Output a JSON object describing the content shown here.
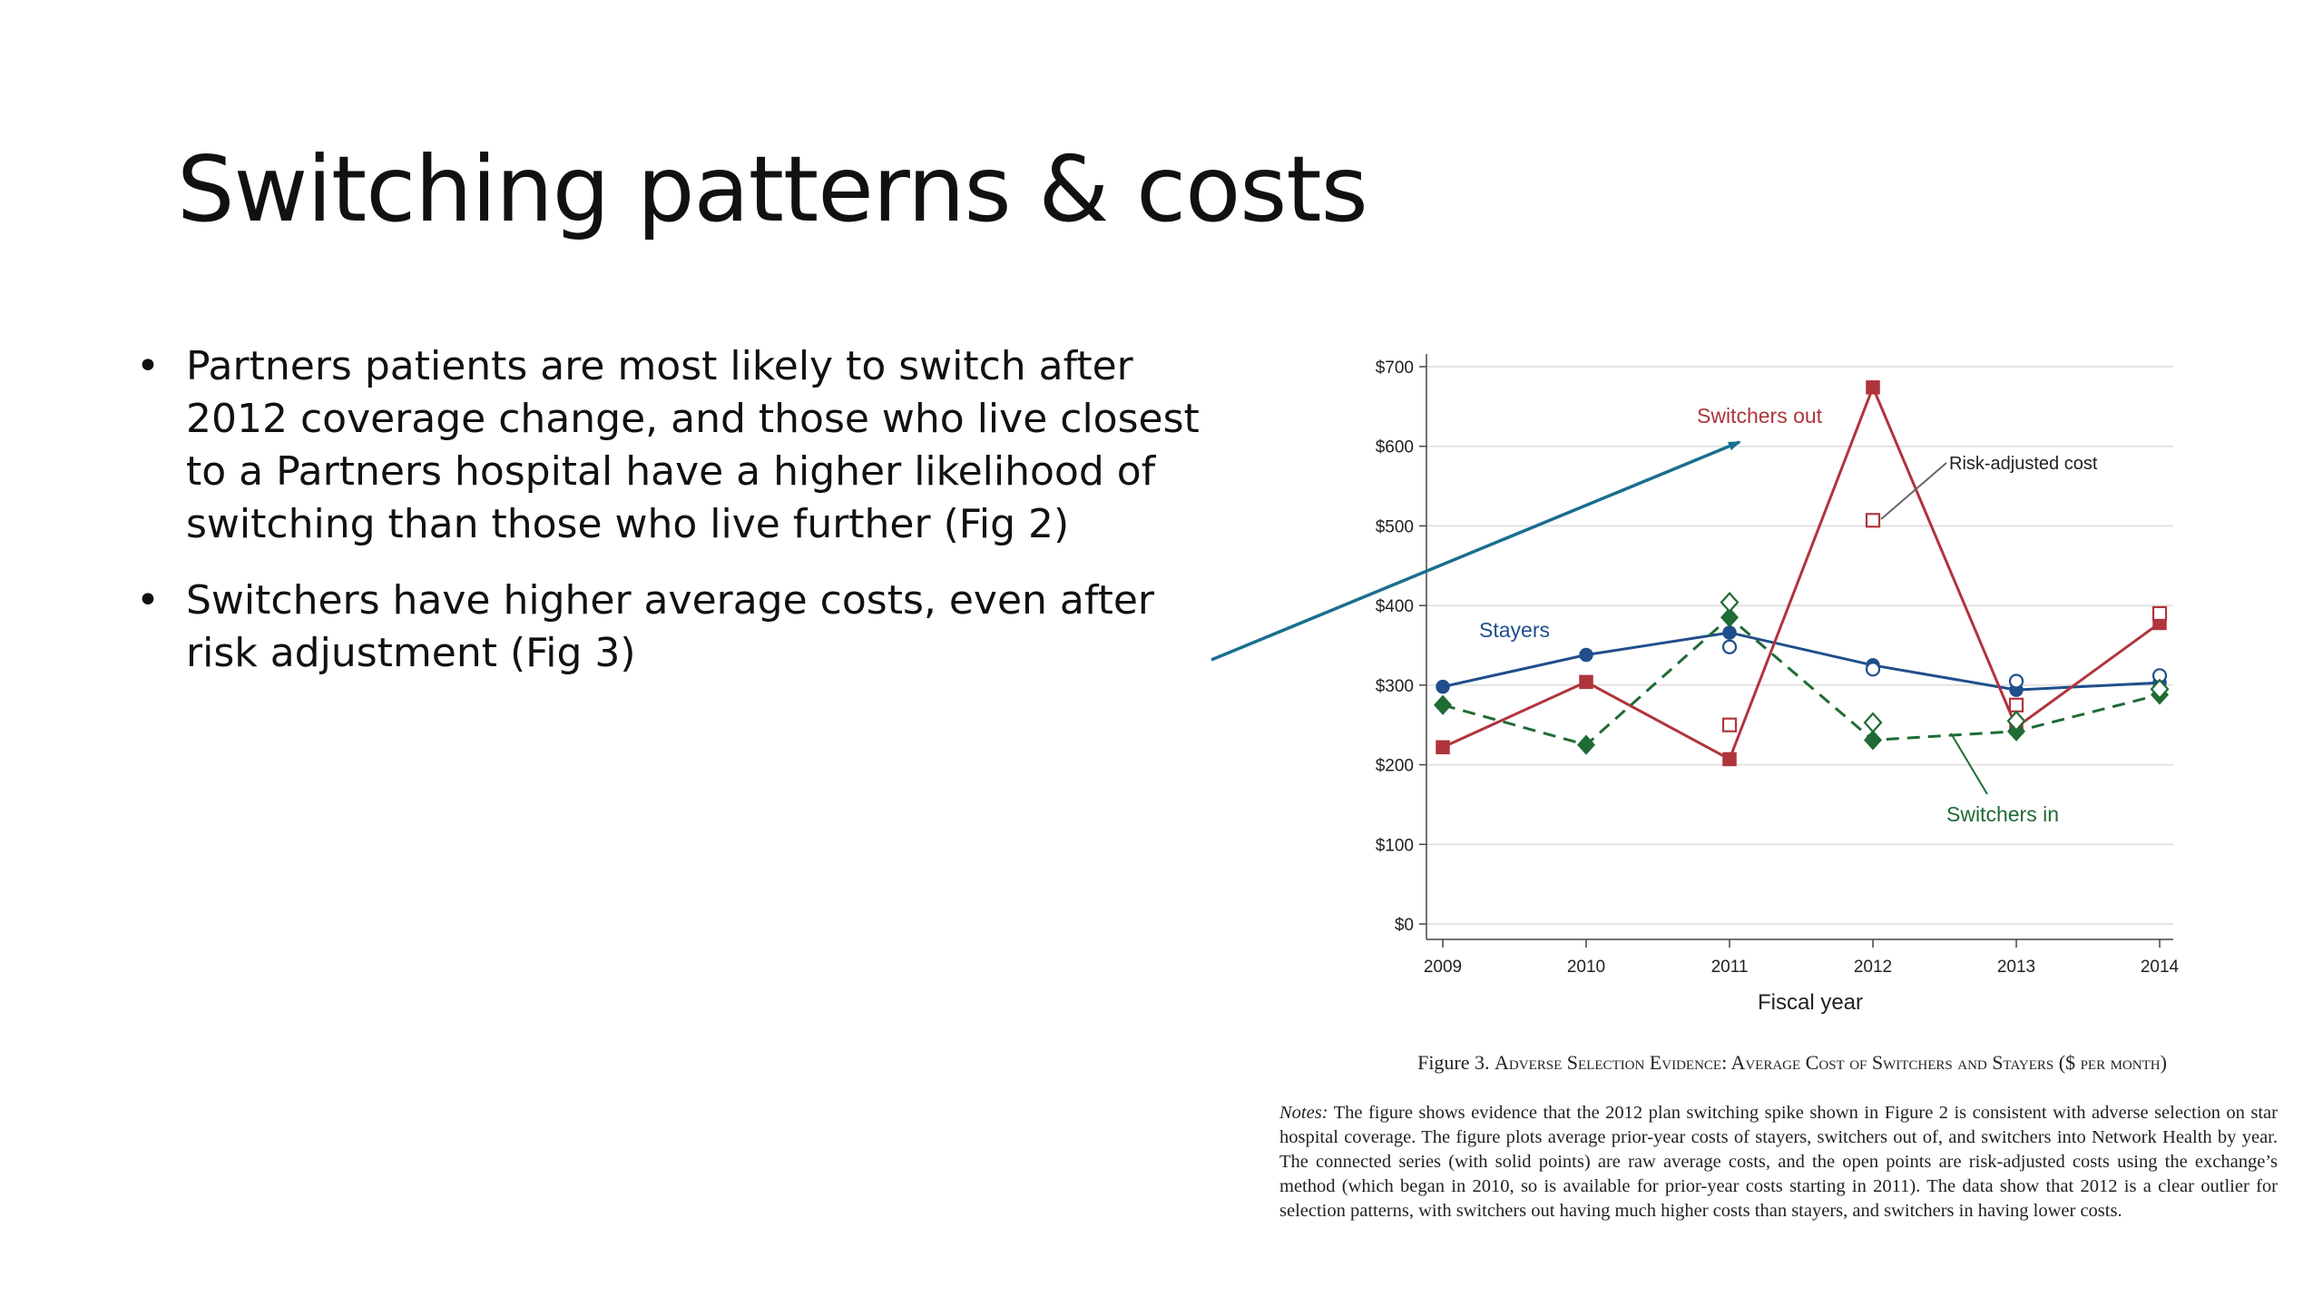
{
  "slide": {
    "title": "Switching patterns & costs",
    "bullets": [
      "Partners patients are most likely to switch after 2012 coverage change, and those who live closest to a Partners hospital have a higher likelihood of switching than those who live further (Fig 2)",
      "Switchers have higher average costs, even after risk adjustment (Fig 3)"
    ],
    "bullet_symbol": "•"
  },
  "chart_data": {
    "type": "line",
    "title": "",
    "xlabel": "Fiscal year",
    "ylabel": "",
    "x": [
      2009,
      2010,
      2011,
      2012,
      2013,
      2014
    ],
    "ylim": [
      0,
      700
    ],
    "yticks": [
      0,
      100,
      200,
      300,
      400,
      500,
      600,
      700
    ],
    "ytick_labels": [
      "$0",
      "$100",
      "$200",
      "$300",
      "$400",
      "$500",
      "$600",
      "$700"
    ],
    "grid": true,
    "series": [
      {
        "name": "Stayers",
        "color": "#1f4e8c",
        "style": "solid",
        "marker": "circle",
        "values": [
          298,
          338,
          366,
          325,
          294,
          303
        ],
        "risk_adjusted": [
          null,
          null,
          348,
          320,
          305,
          312
        ]
      },
      {
        "name": "Switchers out",
        "color": "#b0343c",
        "style": "solid",
        "marker": "square",
        "values": [
          222,
          304,
          207,
          674,
          247,
          378
        ],
        "risk_adjusted": [
          null,
          null,
          250,
          507,
          275,
          390
        ]
      },
      {
        "name": "Switchers in",
        "color": "#1f6b35",
        "style": "dashed",
        "marker": "diamond",
        "values": [
          275,
          225,
          385,
          231,
          242,
          288
        ],
        "risk_adjusted": [
          null,
          null,
          404,
          253,
          255,
          295
        ]
      }
    ],
    "annotations": {
      "risk_adjusted_label": "Risk-adjusted cost"
    },
    "pointer_arrow_color": "#1a6e8e"
  },
  "figure": {
    "caption_prefix": "Figure 3.",
    "caption_text": "Adverse Selection Evidence: Average Cost of Switchers and Stayers ($ per month)",
    "notes_label": "Notes:",
    "notes_text": "The figure shows evidence that the 2012 plan switching spike shown in Figure 2 is consistent with adverse selection on star hospital coverage. The figure plots average prior-year costs of stayers, switchers out of, and switchers into Network Health by year. The connected series (with solid points) are raw average costs, and the open points are risk-adjusted costs using the exchange’s method (which began in 2010, so is available for prior-year costs starting in 2011). The data show that 2012 is a clear outlier for selection patterns, with switchers out having much higher costs than stayers, and switchers in having lower costs."
  }
}
